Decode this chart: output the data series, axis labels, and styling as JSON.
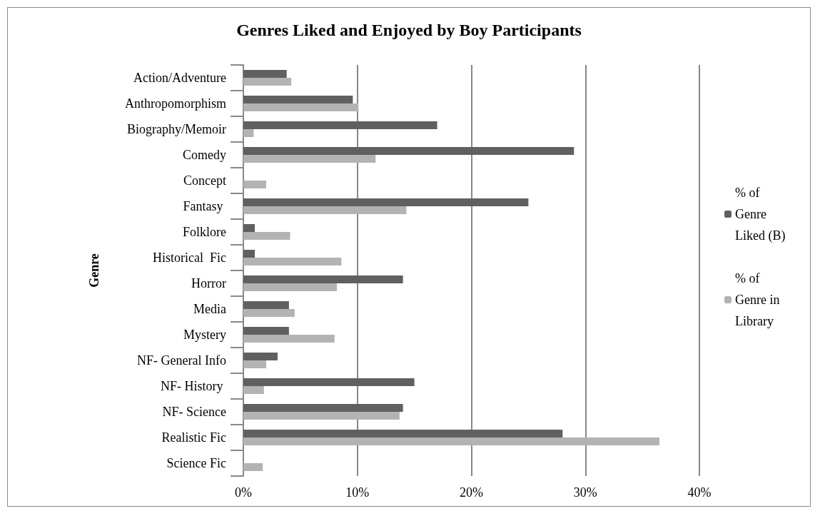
{
  "chart_data": {
    "type": "bar",
    "orientation": "horizontal",
    "title": "Genres Liked and Enjoyed by Boy Participants",
    "ylabel": "Genre",
    "categories": [
      "Action/Adventure",
      "Anthropomorphism",
      "Biography/Memoir",
      "Comedy",
      "Concept",
      "Fantasy ",
      "Folklore",
      "Historical  Fic",
      "Horror",
      "Media",
      "Mystery",
      "NF- General Info",
      "NF- History ",
      "NF- Science",
      "Realistic Fic",
      "Science Fic"
    ],
    "series": [
      {
        "name": "% of Genre Liked (B)",
        "color": "#606060",
        "values": [
          3.8,
          9.6,
          17.0,
          29.0,
          0,
          25.0,
          1.0,
          1.0,
          14.0,
          4.0,
          4.0,
          3.0,
          15.0,
          14.0,
          28.0,
          0
        ]
      },
      {
        "name": "% of Genre in Library",
        "color": "#b3b3b3",
        "values": [
          4.2,
          10.1,
          0.9,
          11.6,
          2.0,
          14.3,
          4.1,
          8.6,
          8.2,
          4.5,
          8.0,
          2.0,
          1.8,
          13.7,
          36.5,
          1.7
        ]
      }
    ],
    "xlim": [
      0,
      40
    ],
    "xticks": [
      {
        "value": 0,
        "label": "0%"
      },
      {
        "value": 10,
        "label": "10%"
      },
      {
        "value": 20,
        "label": "20%"
      },
      {
        "value": 30,
        "label": "30%"
      },
      {
        "value": 40,
        "label": "40%"
      }
    ],
    "grid": "x",
    "legend": "right"
  }
}
